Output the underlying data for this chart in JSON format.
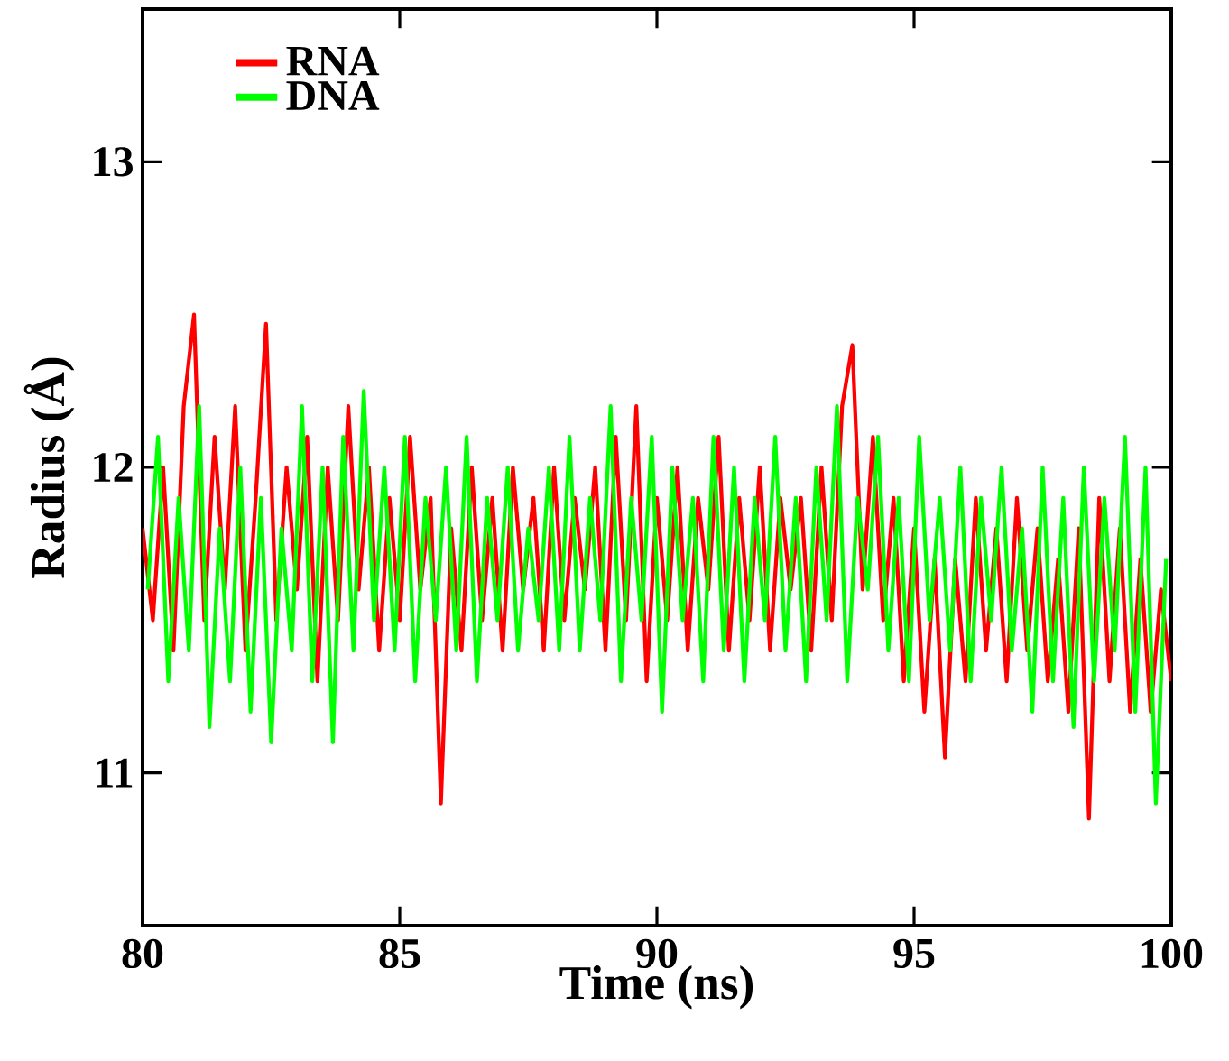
{
  "chart_data": {
    "type": "line",
    "xlabel": "Time (ns)",
    "ylabel": "Radius (Å)",
    "xlim": [
      80,
      100
    ],
    "ylim": [
      10.5,
      13.5
    ],
    "xticks": [
      80,
      85,
      90,
      95,
      100
    ],
    "yticks": [
      11,
      12,
      13
    ],
    "grid": false,
    "legend": "top left",
    "marker": "none",
    "line_style": "solid",
    "series": [
      {
        "name": "RNA",
        "color": "#ff0000",
        "x": [
          80.0,
          80.2,
          80.4,
          80.6,
          80.8,
          81.0,
          81.2,
          81.4,
          81.6,
          81.8,
          82.0,
          82.2,
          82.4,
          82.6,
          82.8,
          83.0,
          83.2,
          83.4,
          83.6,
          83.8,
          84.0,
          84.2,
          84.4,
          84.6,
          84.8,
          85.0,
          85.2,
          85.4,
          85.6,
          85.8,
          86.0,
          86.2,
          86.4,
          86.6,
          86.8,
          87.0,
          87.2,
          87.4,
          87.6,
          87.8,
          88.0,
          88.2,
          88.4,
          88.6,
          88.8,
          89.0,
          89.2,
          89.4,
          89.6,
          89.8,
          90.0,
          90.2,
          90.4,
          90.6,
          90.8,
          91.0,
          91.2,
          91.4,
          91.6,
          91.8,
          92.0,
          92.2,
          92.4,
          92.6,
          92.8,
          93.0,
          93.2,
          93.4,
          93.6,
          93.8,
          94.0,
          94.2,
          94.4,
          94.6,
          94.8,
          95.0,
          95.2,
          95.4,
          95.6,
          95.8,
          96.0,
          96.2,
          96.4,
          96.6,
          96.8,
          97.0,
          97.2,
          97.4,
          97.6,
          97.8,
          98.0,
          98.2,
          98.4,
          98.6,
          98.8,
          99.0,
          99.2,
          99.4,
          99.6,
          99.8,
          100.0
        ],
        "values": [
          11.8,
          11.5,
          12.0,
          11.4,
          12.2,
          12.5,
          11.5,
          12.1,
          11.6,
          12.2,
          11.4,
          11.9,
          12.47,
          11.5,
          12.0,
          11.6,
          12.1,
          11.3,
          12.0,
          11.5,
          12.2,
          11.6,
          12.0,
          11.4,
          11.9,
          11.5,
          12.1,
          11.6,
          11.9,
          10.9,
          11.8,
          11.4,
          12.0,
          11.5,
          11.9,
          11.4,
          12.0,
          11.6,
          11.9,
          11.4,
          12.0,
          11.5,
          11.9,
          11.6,
          12.0,
          11.4,
          12.1,
          11.5,
          12.2,
          11.3,
          11.9,
          11.5,
          12.0,
          11.4,
          11.9,
          11.6,
          12.1,
          11.4,
          11.9,
          11.5,
          12.0,
          11.4,
          11.9,
          11.6,
          11.9,
          11.4,
          12.0,
          11.5,
          12.2,
          12.4,
          11.6,
          12.1,
          11.5,
          11.9,
          11.3,
          11.8,
          11.2,
          11.7,
          11.05,
          11.7,
          11.3,
          11.9,
          11.4,
          11.8,
          11.3,
          11.9,
          11.4,
          11.8,
          11.3,
          11.7,
          11.2,
          11.8,
          10.85,
          11.9,
          11.3,
          11.8,
          11.2,
          11.7,
          11.2,
          11.6,
          11.3
        ]
      },
      {
        "name": "DNA",
        "color": "#00ff00",
        "x": [
          80.1,
          80.3,
          80.5,
          80.7,
          80.9,
          81.1,
          81.3,
          81.5,
          81.7,
          81.9,
          82.1,
          82.3,
          82.5,
          82.7,
          82.9,
          83.1,
          83.3,
          83.5,
          83.7,
          83.9,
          84.1,
          84.3,
          84.5,
          84.7,
          84.9,
          85.1,
          85.3,
          85.5,
          85.7,
          85.9,
          86.1,
          86.3,
          86.5,
          86.7,
          86.9,
          87.1,
          87.3,
          87.5,
          87.7,
          87.9,
          88.1,
          88.3,
          88.5,
          88.7,
          88.9,
          89.1,
          89.3,
          89.5,
          89.7,
          89.9,
          90.1,
          90.3,
          90.5,
          90.7,
          90.9,
          91.1,
          91.3,
          91.5,
          91.7,
          91.9,
          92.1,
          92.3,
          92.5,
          92.7,
          92.9,
          93.1,
          93.3,
          93.5,
          93.7,
          93.9,
          94.1,
          94.3,
          94.5,
          94.7,
          94.9,
          95.1,
          95.3,
          95.5,
          95.7,
          95.9,
          96.1,
          96.3,
          96.5,
          96.7,
          96.9,
          97.1,
          97.3,
          97.5,
          97.7,
          97.9,
          98.1,
          98.3,
          98.5,
          98.7,
          98.9,
          99.1,
          99.3,
          99.5,
          99.7,
          99.9
        ],
        "values": [
          11.6,
          12.1,
          11.3,
          11.9,
          11.4,
          12.2,
          11.15,
          11.8,
          11.3,
          12.0,
          11.2,
          11.9,
          11.1,
          11.8,
          11.4,
          12.2,
          11.3,
          12.0,
          11.1,
          12.1,
          11.4,
          12.25,
          11.5,
          12.0,
          11.4,
          12.1,
          11.3,
          11.9,
          11.5,
          12.0,
          11.4,
          12.1,
          11.3,
          11.9,
          11.5,
          12.0,
          11.4,
          11.8,
          11.5,
          12.0,
          11.4,
          12.1,
          11.4,
          11.9,
          11.5,
          12.2,
          11.3,
          11.9,
          11.5,
          12.1,
          11.2,
          12.0,
          11.5,
          11.9,
          11.3,
          12.1,
          11.4,
          12.0,
          11.3,
          11.9,
          11.5,
          12.1,
          11.4,
          11.9,
          11.3,
          12.0,
          11.5,
          12.2,
          11.3,
          11.9,
          11.6,
          12.1,
          11.4,
          11.9,
          11.3,
          12.1,
          11.5,
          11.9,
          11.4,
          12.0,
          11.3,
          11.9,
          11.5,
          12.0,
          11.4,
          11.8,
          11.2,
          12.0,
          11.3,
          11.9,
          11.15,
          12.0,
          11.3,
          11.9,
          11.4,
          12.1,
          11.2,
          12.0,
          10.9,
          11.7
        ]
      }
    ]
  }
}
